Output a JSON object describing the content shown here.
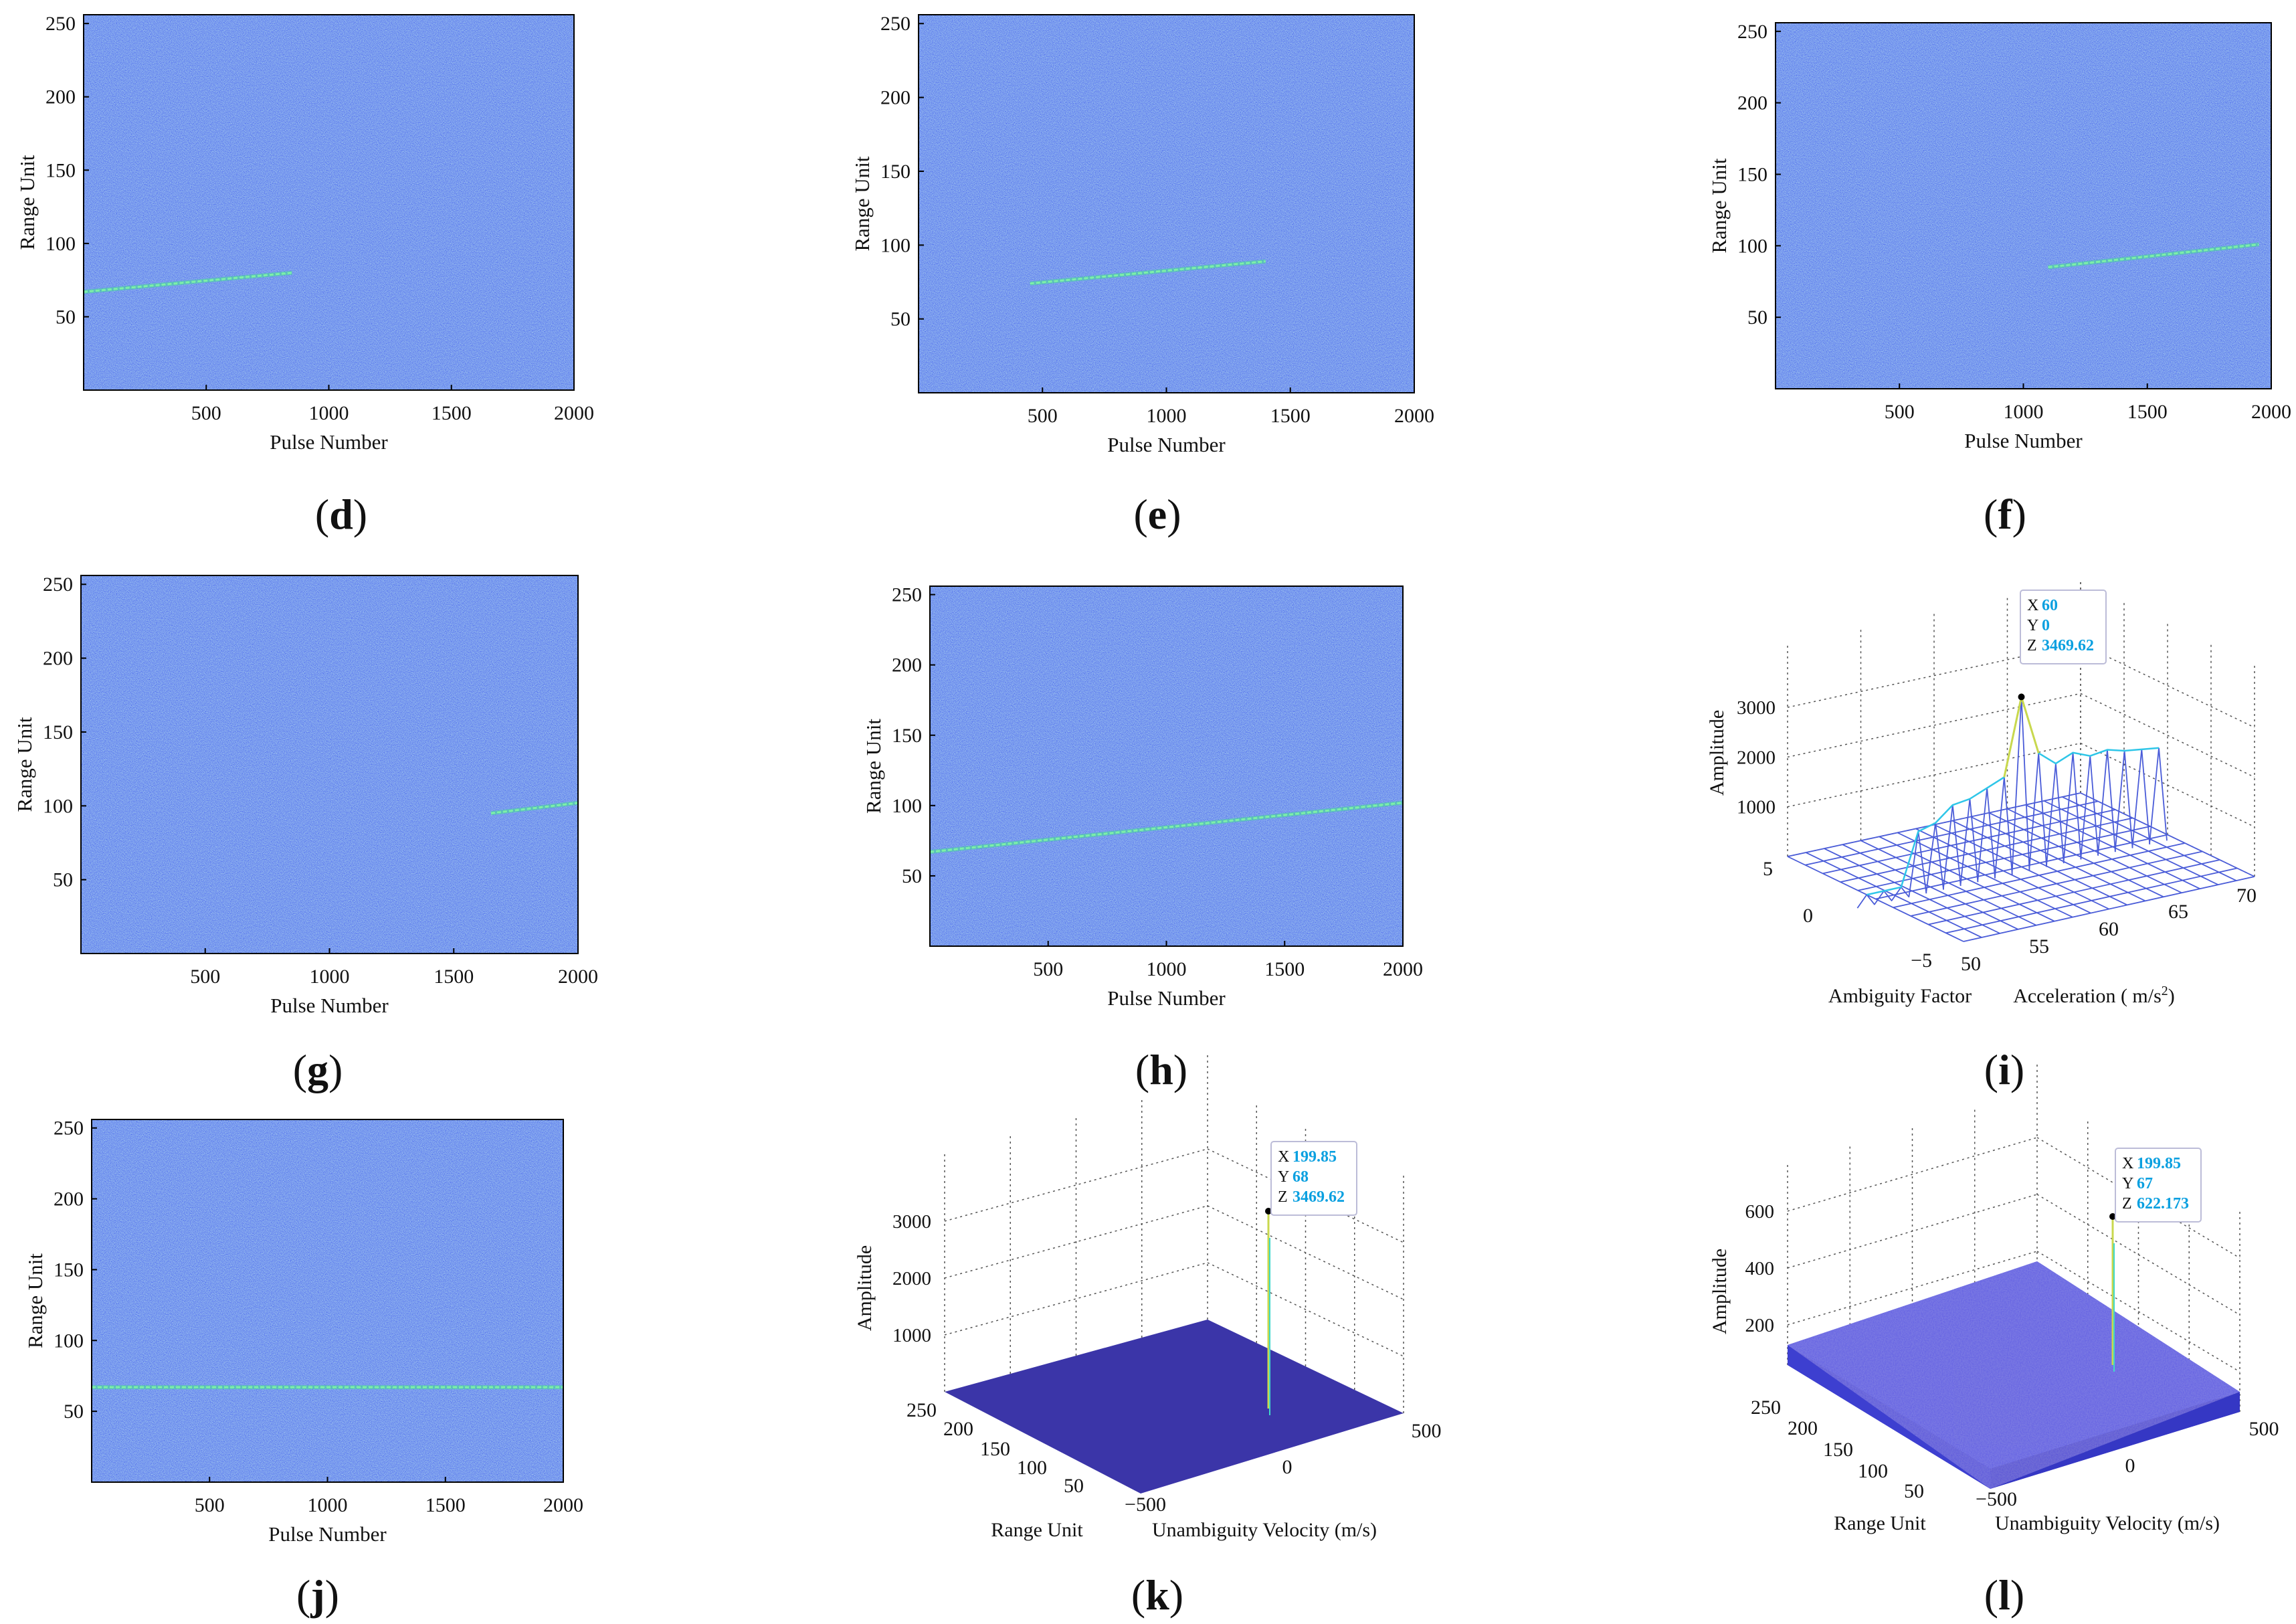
{
  "figure": {
    "colors": {
      "background": "#3a56ee",
      "track": "#3ee08c",
      "frame": "#000000",
      "surface_edge": "#4a5cd8",
      "surface_fill": "#ffffff",
      "peak": "#c9d84e",
      "tip_value": "#0aa0e0"
    },
    "panels_2d": [
      {
        "label": "d",
        "ylabel": "Range Unit",
        "xlabel": "Pulse Number",
        "xticks": [
          500,
          1000,
          1500,
          2000
        ],
        "yticks": [
          50,
          100,
          150,
          200,
          250
        ],
        "xlim": [
          0,
          2000
        ],
        "ylim": [
          0,
          256
        ],
        "track": {
          "x": [
            0,
            850
          ],
          "y": [
            67,
            80
          ]
        }
      },
      {
        "label": "e",
        "ylabel": "Range Unit",
        "xlabel": "Pulse Number",
        "xticks": [
          500,
          1000,
          1500,
          2000
        ],
        "yticks": [
          50,
          100,
          150,
          200,
          250
        ],
        "xlim": [
          0,
          2000
        ],
        "ylim": [
          0,
          256
        ],
        "track": {
          "x": [
            450,
            1400
          ],
          "y": [
            74,
            89
          ]
        }
      },
      {
        "label": "f",
        "ylabel": "Range Unit",
        "xlabel": "Pulse Number",
        "xticks": [
          500,
          1000,
          1500,
          2000
        ],
        "yticks": [
          50,
          100,
          150,
          200,
          250
        ],
        "xlim": [
          0,
          2000
        ],
        "ylim": [
          0,
          256
        ],
        "track": {
          "x": [
            1100,
            1950
          ],
          "y": [
            85,
            101
          ]
        }
      },
      {
        "label": "g",
        "ylabel": "Range Unit",
        "xlabel": "Pulse Number",
        "xticks": [
          500,
          1000,
          1500,
          2000
        ],
        "yticks": [
          50,
          100,
          150,
          200,
          250
        ],
        "xlim": [
          0,
          2000
        ],
        "ylim": [
          0,
          256
        ],
        "track": {
          "x": [
            1650,
            2000
          ],
          "y": [
            95,
            102
          ]
        }
      },
      {
        "label": "h",
        "ylabel": "Range Unit",
        "xlabel": "Pulse Number",
        "xticks": [
          500,
          1000,
          1500,
          2000
        ],
        "yticks": [
          50,
          100,
          150,
          200,
          250
        ],
        "xlim": [
          0,
          2000
        ],
        "ylim": [
          0,
          256
        ],
        "track": {
          "x": [
            0,
            2000
          ],
          "y": [
            67,
            102
          ]
        }
      },
      {
        "label": "j",
        "ylabel": "Range Unit",
        "xlabel": "Pulse Number",
        "xticks": [
          500,
          1000,
          1500,
          2000
        ],
        "yticks": [
          50,
          100,
          150,
          200,
          250
        ],
        "xlim": [
          0,
          2000
        ],
        "ylim": [
          0,
          256
        ],
        "track": {
          "x": [
            0,
            2000
          ],
          "y": [
            67,
            67
          ]
        }
      }
    ],
    "panel_i": {
      "label": "i",
      "zlabel": "Amplitude",
      "xlabel_left": "Ambiguity Factor",
      "xlabel_right_main": "Acceleration ( (m/s",
      "xlabel_right_sup": "2",
      "xlabel_right_close": ")",
      "zticks": [
        "1000",
        "2000",
        "3000"
      ],
      "factor_ticks": [
        "5",
        "0",
        "−5"
      ],
      "accel_ticks": [
        "50",
        "55",
        "60",
        "65",
        "70"
      ],
      "tip": {
        "X": "60",
        "Y": "0",
        "Z": "3469.62"
      },
      "peak_profile": [
        0,
        0,
        0,
        1100,
        1200,
        1500,
        1550,
        1700,
        1850,
        3469.62,
        2200,
        1900,
        2050,
        1900,
        1950,
        1850,
        1800,
        1750
      ]
    },
    "panel_k": {
      "label": "k",
      "zlabel": "Amplitude",
      "ylabel": "Range Unit",
      "xlabel": "Unambiguity Velocity (m/s)",
      "zticks": [
        "1000",
        "2000",
        "3000"
      ],
      "range_ticks": [
        "250",
        "200",
        "150",
        "100",
        "50"
      ],
      "vel_ticks": [
        "−500",
        "0",
        "500"
      ],
      "tip": {
        "X": "199.85",
        "Y": "68",
        "Z": "3469.62"
      }
    },
    "panel_l": {
      "label": "l",
      "zlabel": "Amplitude",
      "ylabel": "Range Unit",
      "xlabel": "Unambiguity Velocity (m/s)",
      "zticks": [
        "200",
        "400",
        "600"
      ],
      "range_ticks": [
        "250",
        "200",
        "150",
        "100",
        "50"
      ],
      "vel_ticks": [
        "−500",
        "0",
        "500"
      ],
      "tip": {
        "X": "199.85",
        "Y": "67",
        "Z": "622.173"
      }
    }
  },
  "chart_data": [
    {
      "type": "heatmap",
      "panel": "d",
      "title": "(d)",
      "xlabel": "Pulse Number",
      "ylabel": "Range Unit",
      "xlim": [
        0,
        2000
      ],
      "ylim": [
        0,
        256
      ],
      "track": {
        "x": [
          0,
          850
        ],
        "y": [
          67,
          80
        ]
      }
    },
    {
      "type": "heatmap",
      "panel": "e",
      "title": "(e)",
      "xlabel": "Pulse Number",
      "ylabel": "Range Unit",
      "xlim": [
        0,
        2000
      ],
      "ylim": [
        0,
        256
      ],
      "track": {
        "x": [
          450,
          1400
        ],
        "y": [
          74,
          89
        ]
      }
    },
    {
      "type": "heatmap",
      "panel": "f",
      "title": "(f)",
      "xlabel": "Pulse Number",
      "ylabel": "Range Unit",
      "xlim": [
        0,
        2000
      ],
      "ylim": [
        0,
        256
      ],
      "track": {
        "x": [
          1100,
          1950
        ],
        "y": [
          85,
          101
        ]
      }
    },
    {
      "type": "heatmap",
      "panel": "g",
      "title": "(g)",
      "xlabel": "Pulse Number",
      "ylabel": "Range Unit",
      "xlim": [
        0,
        2000
      ],
      "ylim": [
        0,
        256
      ],
      "track": {
        "x": [
          1650,
          2000
        ],
        "y": [
          95,
          102
        ]
      }
    },
    {
      "type": "heatmap",
      "panel": "h",
      "title": "(h)",
      "xlabel": "Pulse Number",
      "ylabel": "Range Unit",
      "xlim": [
        0,
        2000
      ],
      "ylim": [
        0,
        256
      ],
      "track": {
        "x": [
          0,
          2000
        ],
        "y": [
          67,
          102
        ]
      }
    },
    {
      "type": "surface",
      "panel": "i",
      "title": "(i)",
      "xlabel": "Acceleration ( (m/s^2)",
      "ylabel": "Ambiguity Factor",
      "zlabel": "Amplitude",
      "peak": {
        "X": 60,
        "Y": 0,
        "Z": 3469.62
      }
    },
    {
      "type": "heatmap",
      "panel": "j",
      "title": "(j)",
      "xlabel": "Pulse Number",
      "ylabel": "Range Unit",
      "xlim": [
        0,
        2000
      ],
      "ylim": [
        0,
        256
      ],
      "track": {
        "x": [
          0,
          2000
        ],
        "y": [
          67,
          67
        ]
      }
    },
    {
      "type": "surface",
      "panel": "k",
      "title": "(k)",
      "xlabel": "Unambiguity Velocity (m/s)",
      "ylabel": "Range Unit",
      "zlabel": "Amplitude",
      "peak": {
        "X": 199.85,
        "Y": 68,
        "Z": 3469.62
      }
    },
    {
      "type": "surface",
      "panel": "l",
      "title": "(l)",
      "xlabel": "Unambiguity Velocity (m/s)",
      "ylabel": "Range Unit",
      "zlabel": "Amplitude",
      "peak": {
        "X": 199.85,
        "Y": 67,
        "Z": 622.173
      }
    }
  ]
}
